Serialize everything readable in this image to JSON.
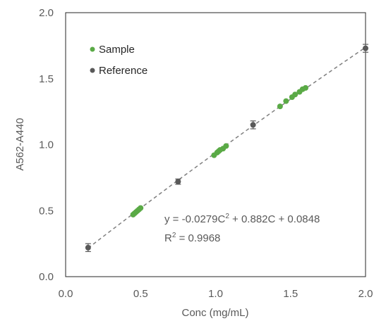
{
  "chart_data": {
    "type": "scatter",
    "xlabel": "Conc (mg/mL)",
    "ylabel": "A562-A440",
    "xlim": [
      0.0,
      2.0
    ],
    "ylim": [
      0.0,
      2.0
    ],
    "xticks": [
      "0.0",
      "0.5",
      "1.0",
      "1.5",
      "2.0"
    ],
    "yticks": [
      "0.0",
      "0.5",
      "1.0",
      "1.5",
      "2.0"
    ],
    "grid": false,
    "legend_position": "top-left",
    "series": [
      {
        "name": "Sample",
        "color": "#5aaa46",
        "points": [
          [
            0.45,
            0.47
          ],
          [
            0.46,
            0.48
          ],
          [
            0.47,
            0.49
          ],
          [
            0.48,
            0.5
          ],
          [
            0.49,
            0.51
          ],
          [
            0.5,
            0.52
          ],
          [
            0.99,
            0.92
          ],
          [
            1.01,
            0.94
          ],
          [
            1.02,
            0.95
          ],
          [
            1.03,
            0.96
          ],
          [
            1.05,
            0.97
          ],
          [
            1.07,
            0.99
          ],
          [
            1.43,
            1.29
          ],
          [
            1.47,
            1.33
          ],
          [
            1.51,
            1.36
          ],
          [
            1.53,
            1.38
          ],
          [
            1.56,
            1.4
          ],
          [
            1.58,
            1.42
          ],
          [
            1.6,
            1.43
          ]
        ]
      },
      {
        "name": "Reference",
        "color": "#595959",
        "points": [
          {
            "x": 0.15,
            "y": 0.22,
            "err": 0.03
          },
          {
            "x": 0.75,
            "y": 0.72,
            "err": 0.02
          },
          {
            "x": 1.25,
            "y": 1.15,
            "err": 0.03
          },
          {
            "x": 2.0,
            "y": 1.73,
            "err": 0.03
          }
        ]
      }
    ],
    "trendline": {
      "type": "polynomial",
      "a": -0.0279,
      "b": 0.882,
      "c": 0.0848,
      "x_range": [
        0.15,
        2.0
      ],
      "color": "#7f7f7f"
    },
    "annotations": {
      "equation_prefix": "y = -0.0279C",
      "equation_sup": "2",
      "equation_suffix": " + 0.882C + 0.0848",
      "r2_prefix": "R",
      "r2_sup": "2",
      "r2_suffix": " = 0.9968"
    }
  }
}
